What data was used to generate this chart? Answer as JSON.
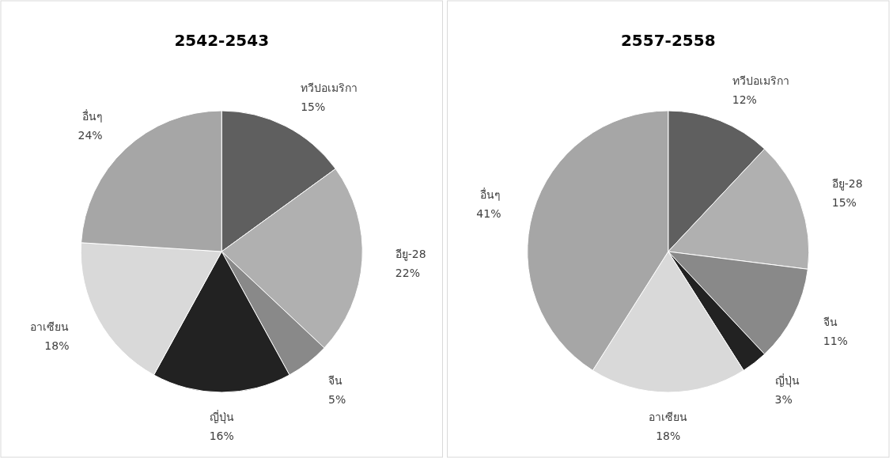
{
  "chart_data": [
    {
      "type": "pie",
      "title": "2542-2543",
      "categories": [
        "ทวีปอเมริกา",
        "อียู-28",
        "จีน",
        "ญี่ปุ่น",
        "อาเซียน",
        "อื่นๆ"
      ],
      "values": [
        15,
        22,
        5,
        16,
        18,
        24
      ],
      "value_labels": [
        "15%",
        "22%",
        "5%",
        "16%",
        "18%",
        "24%"
      ],
      "colors": [
        "#5f5f5f",
        "#b0b0b0",
        "#898989",
        "#222222",
        "#d9d9d9",
        "#a6a6a6"
      ]
    },
    {
      "type": "pie",
      "title": "2557-2558",
      "categories": [
        "ทวีปอเมริกา",
        "อียู-28",
        "จีน",
        "ญี่ปุ่น",
        "อาเซียน",
        "อื่นๆ"
      ],
      "values": [
        12,
        15,
        11,
        3,
        18,
        41
      ],
      "value_labels": [
        "12%",
        "15%",
        "11%",
        "3%",
        "18%",
        "41%"
      ],
      "colors": [
        "#5f5f5f",
        "#b0b0b0",
        "#898989",
        "#222222",
        "#d9d9d9",
        "#a6a6a6"
      ]
    }
  ]
}
